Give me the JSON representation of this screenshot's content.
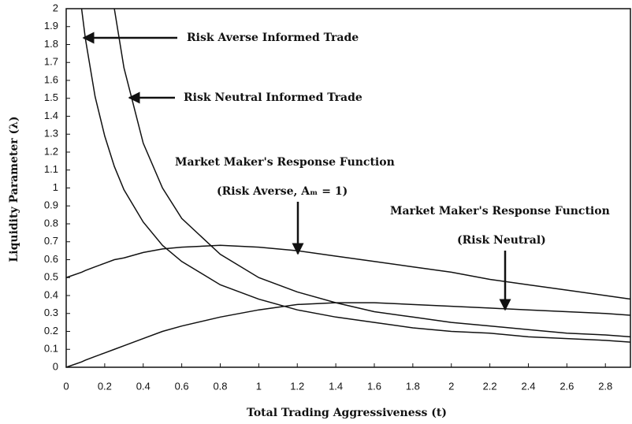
{
  "chart_data": {
    "type": "line",
    "x_label": "Total Trading Aggressiveness (t)",
    "y_label": "Liquidity Parameter (λ)",
    "annotations": [
      "Risk Averse Informed Trade",
      "Risk Neutral Informed Trade",
      "Market Maker's Response Function",
      "(Risk Averse, Aₘ = 1)",
      "Market Maker's Response Function",
      "(Risk Neutral)"
    ],
    "x": [
      0,
      0.08,
      0.1,
      0.15,
      0.2,
      0.25,
      0.3,
      0.4,
      0.5,
      0.6,
      0.8,
      1.0,
      1.2,
      1.4,
      1.6,
      1.8,
      2.0,
      2.2,
      2.4,
      2.6,
      2.8,
      2.93
    ],
    "series": [
      {
        "color": "#111111",
        "values": [
          null,
          2.0,
          1.83,
          1.51,
          1.29,
          1.12,
          0.99,
          0.81,
          0.68,
          0.59,
          0.46,
          0.38,
          0.32,
          0.28,
          0.25,
          0.22,
          0.2,
          0.19,
          0.17,
          0.16,
          0.15,
          0.14
        ]
      },
      {
        "color": "#111111",
        "values": [
          null,
          null,
          null,
          null,
          null,
          2.0,
          1.67,
          1.25,
          1.0,
          0.83,
          0.63,
          0.5,
          0.42,
          0.36,
          0.31,
          0.28,
          0.25,
          0.23,
          0.21,
          0.19,
          0.18,
          0.17
        ]
      },
      {
        "color": "#111111",
        "values": [
          0.5,
          0.53,
          0.54,
          0.56,
          0.58,
          0.6,
          0.61,
          0.64,
          0.66,
          0.67,
          0.68,
          0.67,
          0.65,
          0.62,
          0.59,
          0.56,
          0.53,
          0.49,
          0.46,
          0.43,
          0.4,
          0.38
        ]
      },
      {
        "color": "#111111",
        "values": [
          0,
          0.03,
          0.04,
          0.06,
          0.08,
          0.1,
          0.12,
          0.16,
          0.2,
          0.23,
          0.28,
          0.32,
          0.35,
          0.36,
          0.36,
          0.35,
          0.34,
          0.33,
          0.32,
          0.31,
          0.3,
          0.29
        ]
      }
    ],
    "xlim": [
      0,
      2.93
    ],
    "xticks": [
      0,
      0.2,
      0.4,
      0.6,
      0.8,
      1,
      1.2,
      1.4,
      1.6,
      1.8,
      2,
      2.2,
      2.4,
      2.6,
      2.8
    ],
    "ylim": [
      0,
      2
    ],
    "yticks": [
      0,
      0.1,
      0.2,
      0.3,
      0.4,
      0.5,
      0.6,
      0.7,
      0.8,
      0.9,
      1,
      1.1,
      1.2,
      1.3,
      1.4,
      1.5,
      1.6,
      1.7,
      1.8,
      1.9,
      2
    ]
  }
}
